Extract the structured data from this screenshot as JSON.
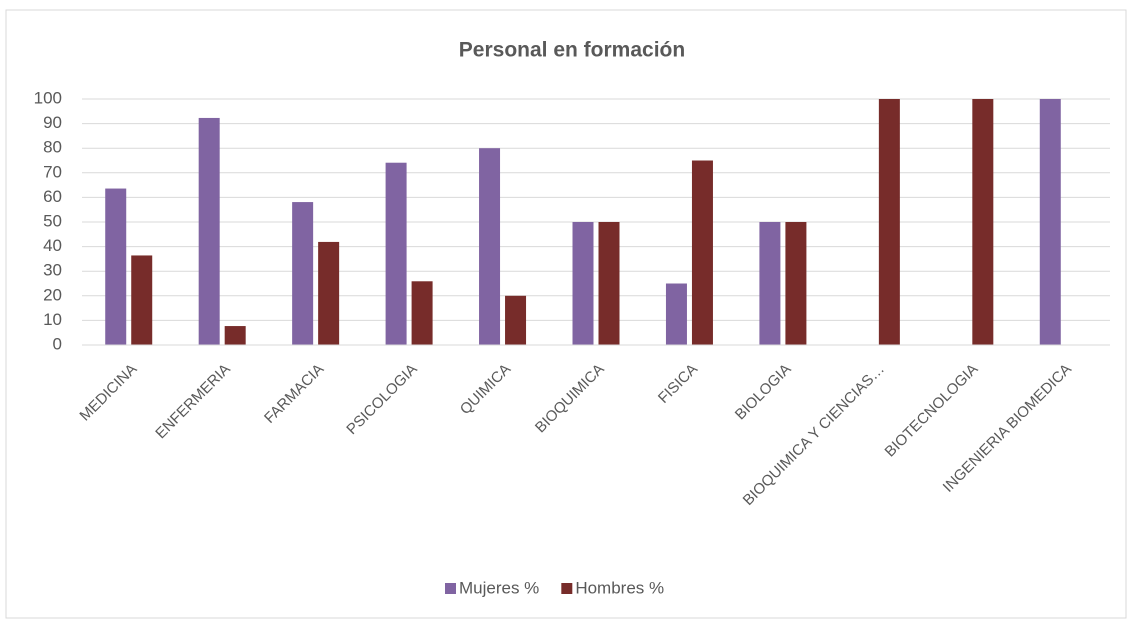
{
  "chart_data": {
    "type": "bar",
    "title": "Personal en formación",
    "categories": [
      "MEDICINA",
      "ENFERMERIA",
      "FARMACIA",
      "PSICOLOGIA",
      "QUIMICA",
      "BIOQUIMICA",
      "FISICA",
      "BIOLOGIA",
      "BIOQUIMICA Y CIENCIAS…",
      "BIOTECNOLOGIA",
      "INGENIERIA BIOMEDICA"
    ],
    "series": [
      {
        "name": "Mujeres %",
        "color": "#8064a2",
        "values": [
          63.6,
          92.3,
          58.1,
          74.1,
          80,
          50,
          25,
          50,
          0,
          0,
          100
        ]
      },
      {
        "name": "Hombres %",
        "color": "#772c2a",
        "values": [
          36.4,
          7.7,
          41.9,
          25.9,
          20,
          50,
          75,
          50,
          100,
          100,
          0
        ]
      }
    ],
    "ylim": [
      0,
      100
    ],
    "yticks": [
      0,
      10,
      20,
      30,
      40,
      50,
      60,
      70,
      80,
      90,
      100
    ],
    "grid": true,
    "legend": "bottom"
  }
}
